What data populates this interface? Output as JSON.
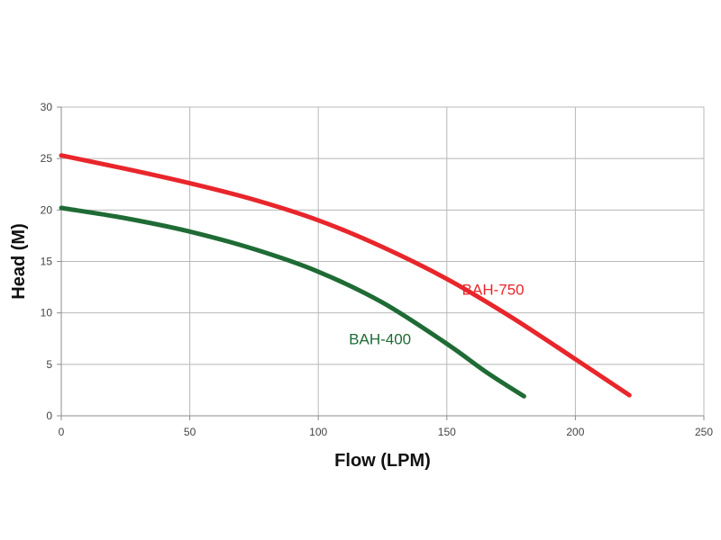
{
  "chart_data": {
    "type": "line",
    "title": "",
    "xlabel": "Flow (LPM)",
    "ylabel": "Head (M)",
    "xlim": [
      0,
      250
    ],
    "ylim": [
      0,
      30
    ],
    "xticks": [
      0,
      50,
      100,
      150,
      200,
      250
    ],
    "yticks": [
      0,
      5,
      10,
      15,
      20,
      25,
      30
    ],
    "grid": true,
    "legend": "none",
    "series": [
      {
        "name": "BAH-750",
        "color": "#e8262b",
        "label_at": [
          168,
          12.3
        ],
        "points": [
          [
            0,
            25.3
          ],
          [
            25,
            24.0
          ],
          [
            50,
            22.6
          ],
          [
            75,
            21.0
          ],
          [
            100,
            19.0
          ],
          [
            125,
            16.4
          ],
          [
            150,
            13.3
          ],
          [
            175,
            9.6
          ],
          [
            200,
            5.5
          ],
          [
            221,
            2.0
          ]
        ]
      },
      {
        "name": "BAH-400",
        "color": "#1f6b35",
        "label_at": [
          124,
          7.5
        ],
        "points": [
          [
            0,
            20.2
          ],
          [
            25,
            19.2
          ],
          [
            50,
            17.9
          ],
          [
            75,
            16.2
          ],
          [
            100,
            14.0
          ],
          [
            125,
            11.0
          ],
          [
            150,
            7.0
          ],
          [
            165,
            4.3
          ],
          [
            180,
            1.9
          ]
        ]
      }
    ]
  }
}
